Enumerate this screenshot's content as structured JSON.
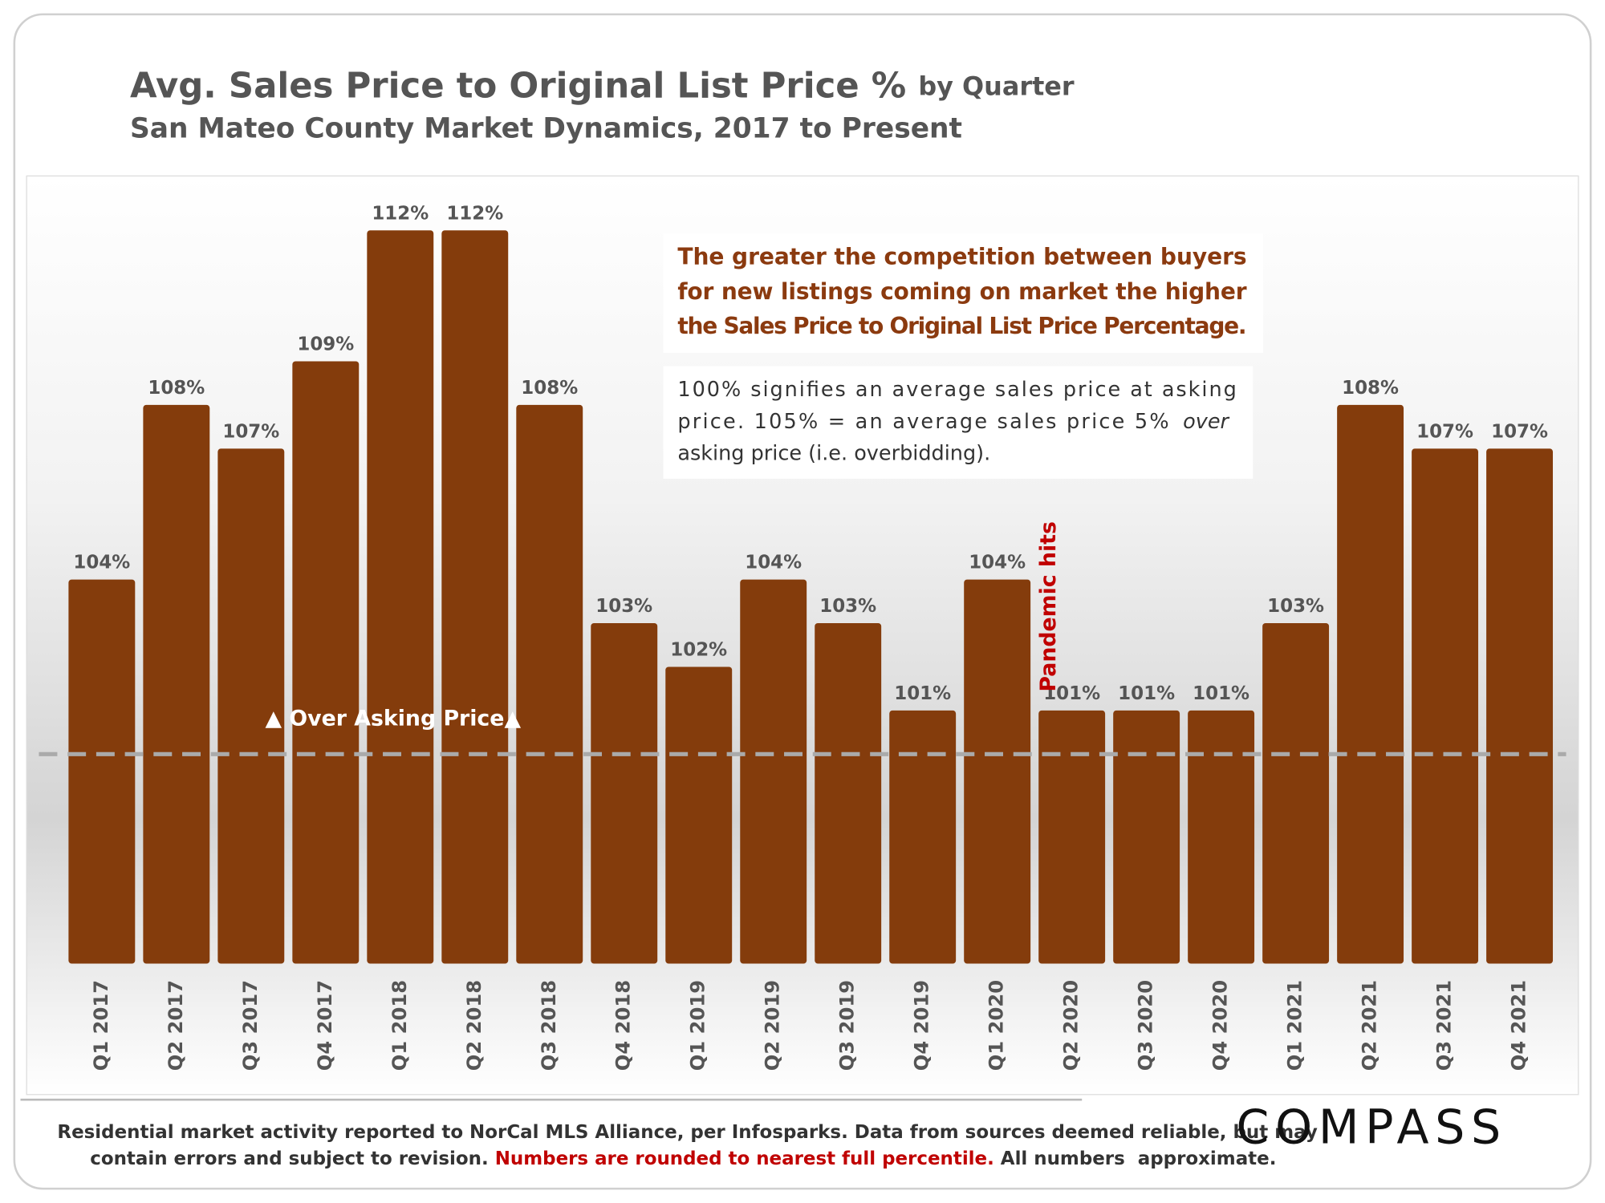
{
  "chart_data": {
    "type": "bar",
    "title": "Avg. Sales Price to Original List Price %",
    "title_suffix": "by Quarter",
    "subtitle": "San Mateo County Market Dynamics, 2017 to Present",
    "categories": [
      "Q1 2017",
      "Q2 2017",
      "Q3 2017",
      "Q4 2017",
      "Q1 2018",
      "Q2 2018",
      "Q3 2018",
      "Q4 2018",
      "Q1 2019",
      "Q2 2019",
      "Q3 2019",
      "Q4 2019",
      "Q1 2020",
      "Q2 2020",
      "Q3 2020",
      "Q4 2020",
      "Q1 2021",
      "Q2 2021",
      "Q3 2021",
      "Q4 2021"
    ],
    "values": [
      104,
      108,
      107,
      109,
      112,
      112,
      108,
      103,
      102,
      104,
      103,
      101,
      104,
      101,
      101,
      101,
      103,
      108,
      107,
      107
    ],
    "value_labels": [
      "104%",
      "108%",
      "107%",
      "109%",
      "112%",
      "112%",
      "108%",
      "103%",
      "102%",
      "104%",
      "103%",
      "101%",
      "104%",
      "101%",
      "101%",
      "101%",
      "103%",
      "108%",
      "107%",
      "107%"
    ],
    "color": "#843c0c",
    "ylim": [
      95.2,
      113.2
    ],
    "reference_line": {
      "value": 100,
      "label": "▲ Over Asking Price▲"
    },
    "annotations": {
      "pandemic": "Pandemic hits",
      "note1": [
        "The greater the competition between buyers",
        "for new listings coming on market the higher",
        "the Sales Price to Original List Price Percentage."
      ],
      "note2": {
        "line1": "100% signifies an average sales price at asking",
        "line2": "price. 105% = an average sales price 5%",
        "line2_italic": "over",
        "line3": "asking price (i.e. overbidding)."
      }
    },
    "footnote": {
      "line1": "Residential market activity reported to NorCal MLS Alliance, per Infosparks. Data from sources deemed reliable, but may",
      "line2a": "contain errors and subject to revision.",
      "line2b": "Numbers are rounded to nearest full percentile.",
      "line2c": "All numbers  approximate."
    },
    "logo": "COMPASS"
  }
}
